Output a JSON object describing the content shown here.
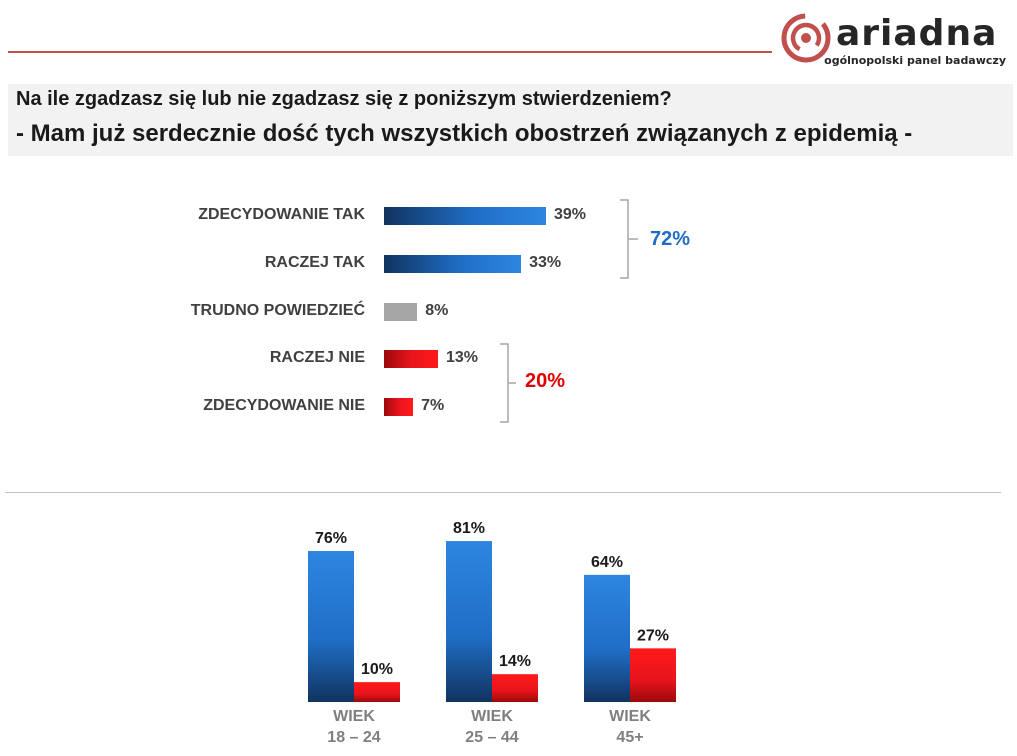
{
  "logo": {
    "brand": "ariadna",
    "tagline": "ogólnopolski panel badawczy",
    "icon": "ariadna-spiral-logo-icon",
    "brand_color": "#c0504d"
  },
  "question": {
    "line1": "Na ile zgadzasz się lub nie zgadzasz się z poniższym stwierdzeniem?",
    "line2": "- Mam już serdecznie dość tych wszystkich obostrzeń związanych z epidemią -"
  },
  "chart_data": [
    {
      "type": "bar",
      "orientation": "horizontal",
      "categories": [
        "ZDECYDOWANIE TAK",
        "RACZEJ TAK",
        "TRUDNO POWIEDZIEĆ",
        "RACZEJ NIE",
        "ZDECYDOWANIE NIE"
      ],
      "values": [
        39,
        33,
        8,
        13,
        7
      ],
      "value_labels": [
        "39%",
        "33%",
        "8%",
        "13%",
        "7%"
      ],
      "colors": [
        "#1f6dc4",
        "#1f6dc4",
        "#a6a6a6",
        "#e8141c",
        "#e8141c"
      ],
      "annotations": [
        {
          "text": "72%",
          "groups": [
            0,
            1
          ],
          "color": "#1f6dc4"
        },
        {
          "text": "20%",
          "groups": [
            3,
            4
          ],
          "color": "#e00000"
        }
      ],
      "xlim": [
        0,
        100
      ],
      "grid": false
    },
    {
      "type": "bar",
      "orientation": "vertical",
      "categories": [
        [
          "WIEK",
          "18 – 24"
        ],
        [
          "WIEK",
          "25 – 44"
        ],
        [
          "WIEK",
          "45+"
        ]
      ],
      "series": [
        {
          "values": [
            76,
            81,
            64
          ],
          "labels": [
            "76%",
            "81%",
            "64%"
          ],
          "color": "#1f6dc4"
        },
        {
          "values": [
            10,
            14,
            27
          ],
          "labels": [
            "10%",
            "14%",
            "27%"
          ],
          "color": "#e8141c"
        }
      ],
      "ylim": [
        0,
        100
      ],
      "grid": false,
      "legend": "none"
    }
  ]
}
